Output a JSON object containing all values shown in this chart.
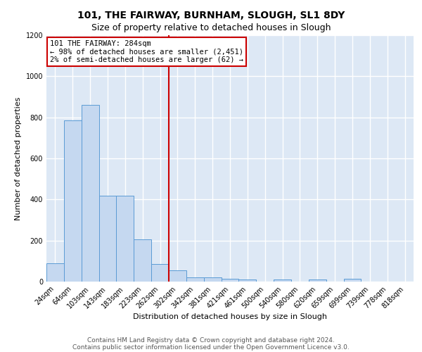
{
  "title_line1": "101, THE FAIRWAY, BURNHAM, SLOUGH, SL1 8DY",
  "title_line2": "Size of property relative to detached houses in Slough",
  "xlabel": "Distribution of detached houses by size in Slough",
  "ylabel": "Number of detached properties",
  "categories": [
    "24sqm",
    "64sqm",
    "103sqm",
    "143sqm",
    "183sqm",
    "223sqm",
    "262sqm",
    "302sqm",
    "342sqm",
    "381sqm",
    "421sqm",
    "461sqm",
    "500sqm",
    "540sqm",
    "580sqm",
    "620sqm",
    "659sqm",
    "699sqm",
    "739sqm",
    "778sqm",
    "818sqm"
  ],
  "values": [
    90,
    785,
    860,
    420,
    420,
    205,
    85,
    55,
    20,
    20,
    15,
    12,
    0,
    12,
    0,
    12,
    0,
    14,
    0,
    0,
    0
  ],
  "bar_color": "#c5d8f0",
  "bar_edge_color": "#5b9bd5",
  "vline_x": 6.5,
  "vline_color": "#cc0000",
  "annotation_text": "101 THE FAIRWAY: 284sqm\n← 98% of detached houses are smaller (2,451)\n2% of semi-detached houses are larger (62) →",
  "annotation_box_color": "#ffffff",
  "annotation_box_edge_color": "#cc0000",
  "ylim": [
    0,
    1200
  ],
  "yticks": [
    0,
    200,
    400,
    600,
    800,
    1000,
    1200
  ],
  "footer_line1": "Contains HM Land Registry data © Crown copyright and database right 2024.",
  "footer_line2": "Contains public sector information licensed under the Open Government Licence v3.0.",
  "background_color": "#dde8f5",
  "grid_color": "#ffffff",
  "title1_fontsize": 10,
  "title2_fontsize": 9,
  "tick_fontsize": 7,
  "ylabel_fontsize": 8,
  "xlabel_fontsize": 8,
  "annotation_fontsize": 7.5,
  "footer_fontsize": 6.5
}
